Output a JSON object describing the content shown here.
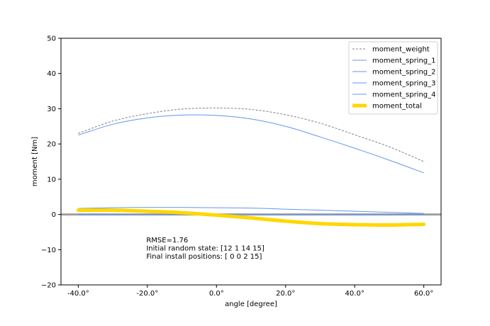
{
  "chart_data": {
    "type": "line",
    "title": "",
    "xlabel": "angle [degree]",
    "ylabel": "moment [Nm]",
    "xlim": [
      -45,
      65
    ],
    "ylim": [
      -20,
      50
    ],
    "x_ticks": [
      -40,
      -20,
      0,
      20,
      40,
      60
    ],
    "x_tick_labels": [
      "-40.0°",
      "-20.0°",
      "0.0°",
      "20.0°",
      "40.0°",
      "60.0°"
    ],
    "y_ticks": [
      -20,
      -10,
      0,
      10,
      20,
      30,
      40,
      50
    ],
    "y_tick_labels": [
      "−20",
      "−10",
      "0",
      "10",
      "20",
      "30",
      "40",
      "50"
    ],
    "grid": false,
    "legend_position": "top-right",
    "x": [
      -40,
      -30,
      -20,
      -10,
      0,
      10,
      20,
      30,
      40,
      50,
      60
    ],
    "series": [
      {
        "name": "moment_weight",
        "color": "#808080",
        "style": "dashed",
        "values": [
          23.0,
          26.5,
          28.6,
          29.9,
          30.2,
          29.8,
          28.3,
          25.9,
          22.6,
          19.2,
          15.0
        ]
      },
      {
        "name": "moment_spring_1",
        "color": "#6495ED",
        "style": "solid",
        "values": [
          22.5,
          25.6,
          27.4,
          28.2,
          28.1,
          27.1,
          25.0,
          22.0,
          18.8,
          15.4,
          11.8
        ]
      },
      {
        "name": "moment_spring_2",
        "color": "#6495ED",
        "style": "solid",
        "values": [
          1.7,
          1.9,
          2.0,
          2.0,
          1.9,
          1.8,
          1.5,
          1.2,
          0.9,
          0.6,
          0.3
        ]
      },
      {
        "name": "moment_spring_3",
        "color": "#6495ED",
        "style": "solid",
        "values": [
          0,
          0,
          0,
          0,
          0,
          0,
          0,
          0,
          0,
          0,
          0
        ]
      },
      {
        "name": "moment_spring_4",
        "color": "#6495ED",
        "style": "solid",
        "values": [
          0,
          0,
          0,
          0,
          0,
          0,
          0,
          0,
          0,
          0,
          0
        ]
      },
      {
        "name": "moment_total",
        "color": "#FFD700",
        "style": "thick",
        "values": [
          1.2,
          1.2,
          0.9,
          0.5,
          -0.2,
          -1.0,
          -1.9,
          -2.6,
          -2.9,
          -3.0,
          -2.8
        ]
      }
    ],
    "zero_line": {
      "y": 0,
      "color": "#A0A0A0"
    },
    "annotations": [
      "RMSE=1.76",
      "Initial random state: [12  1 14 15]",
      "Final install positions: [ 0  0  2 15]"
    ]
  }
}
